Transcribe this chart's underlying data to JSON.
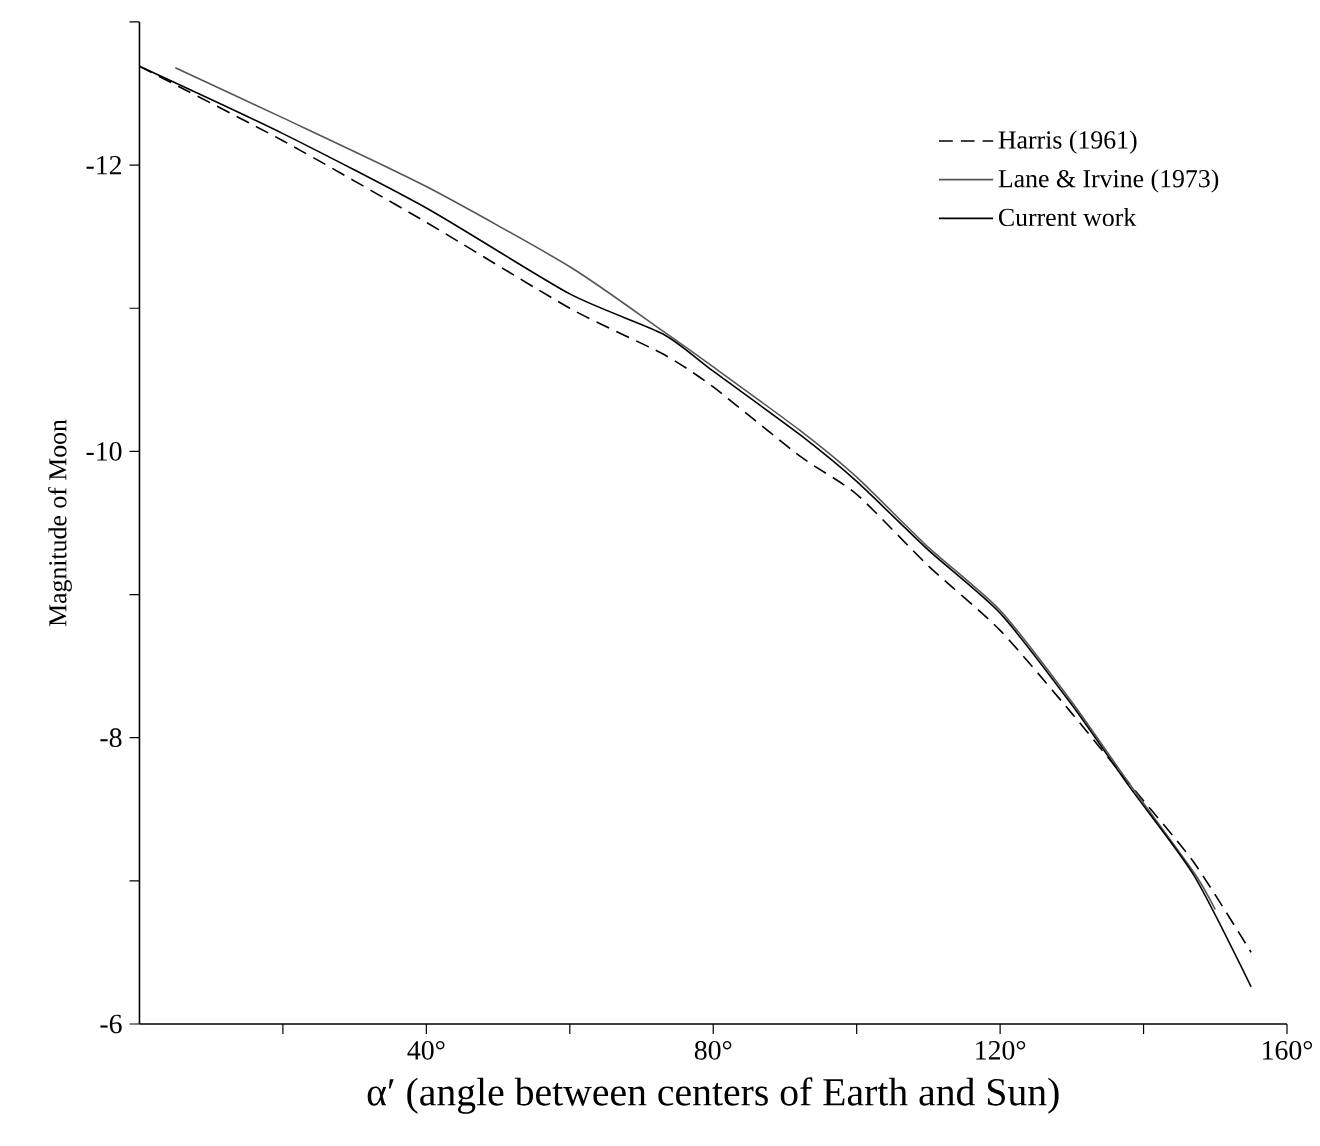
{
  "chart_data": {
    "type": "line",
    "xlabel": "α′ (angle between centers of Earth and Sun)",
    "ylabel": "Magnitude of Moon",
    "xlim": [
      0,
      160
    ],
    "ylim": [
      -6,
      -13
    ],
    "xticks": [
      {
        "value": 20,
        "label": null
      },
      {
        "value": 40,
        "label": "40°"
      },
      {
        "value": 60,
        "label": null
      },
      {
        "value": 80,
        "label": "80°"
      },
      {
        "value": 100,
        "label": null
      },
      {
        "value": 120,
        "label": "120°"
      },
      {
        "value": 140,
        "label": null
      },
      {
        "value": 160,
        "label": "160°"
      }
    ],
    "yticks": [
      -6,
      {
        "value": -7,
        "label": null
      },
      -8,
      {
        "value": -9,
        "label": null
      },
      -10,
      {
        "value": -11,
        "label": null
      },
      -12,
      {
        "value": -13,
        "label": null
      }
    ],
    "legend": "top right",
    "grid": false,
    "marker": "none",
    "series": [
      {
        "name": "Harris (1961)",
        "color": "#000000",
        "line_style": "dashed",
        "x": [
          0,
          20,
          40,
          60,
          73,
          80,
          92,
          100,
          110,
          120,
          130,
          138,
          147,
          155
        ],
        "values": [
          -12.69,
          -12.17,
          -11.6,
          -11.0,
          -10.68,
          -10.45,
          -9.97,
          -9.7,
          -9.2,
          -8.75,
          -8.17,
          -7.68,
          -7.13,
          -6.5
        ]
      },
      {
        "name": "Lane & Irvine (1973)",
        "color": "#555555",
        "line_style": "solid",
        "x": [
          5,
          20,
          40,
          60,
          73,
          80,
          92,
          100,
          110,
          120,
          130,
          138,
          147,
          150
        ],
        "values": [
          -12.68,
          -12.33,
          -11.85,
          -11.29,
          -10.84,
          -10.59,
          -10.15,
          -9.82,
          -9.33,
          -8.89,
          -8.25,
          -7.68,
          -7.06,
          -6.8
        ]
      },
      {
        "name": "Current work",
        "color": "#000000",
        "line_style": "solid",
        "x": [
          0,
          20,
          40,
          60,
          73,
          80,
          92,
          100,
          110,
          120,
          130,
          138,
          147,
          155
        ],
        "values": [
          -12.69,
          -12.22,
          -11.7,
          -11.1,
          -10.82,
          -10.56,
          -10.12,
          -9.79,
          -9.31,
          -8.87,
          -8.23,
          -7.66,
          -7.04,
          -6.26
        ]
      }
    ]
  }
}
